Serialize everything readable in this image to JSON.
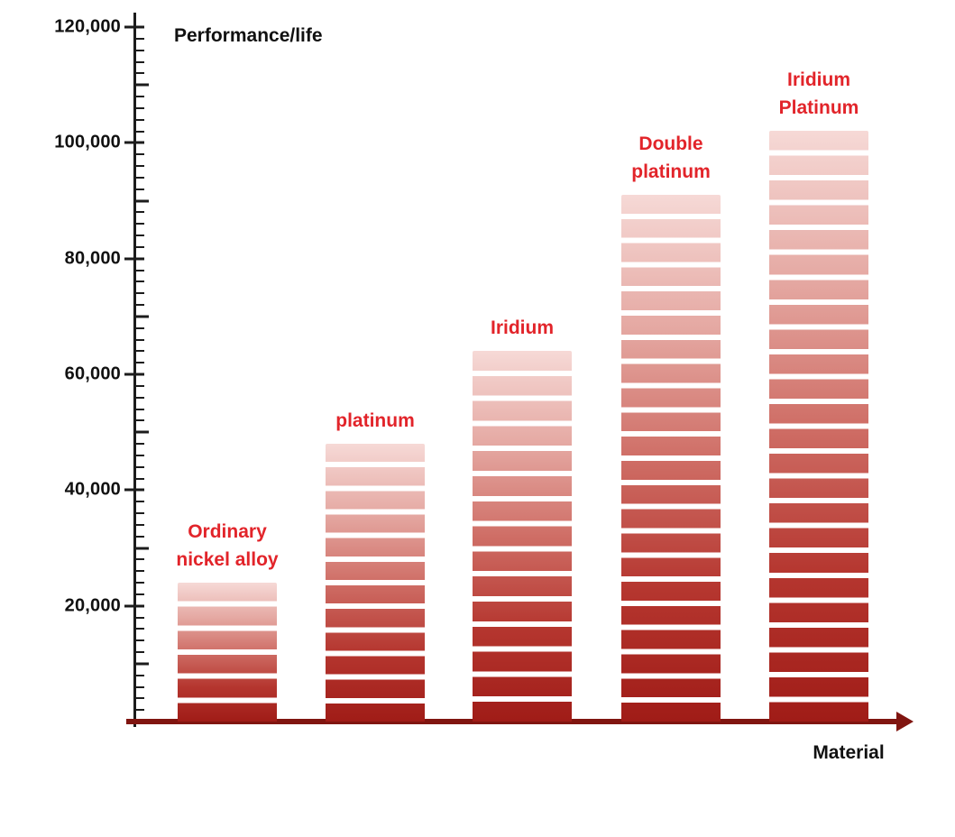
{
  "chart_data": {
    "type": "bar",
    "title": "",
    "ylabel": "Performance/life",
    "xlabel": "Material",
    "categories": [
      "Ordinary nickel alloy",
      "platinum",
      "Iridium",
      "Double platinum",
      "Iridium Platinum"
    ],
    "values": [
      24000,
      48000,
      64000,
      91000,
      102000
    ],
    "ylim": [
      0,
      120000
    ],
    "ytick_step": 20000,
    "ytick_minor_step": 2000,
    "ytick_labels": [
      "20,000",
      "40,000",
      "60,000",
      "80,000",
      "100,000",
      "120,000"
    ],
    "grid": false,
    "legend": null,
    "bar_segmented": true,
    "bar_gradient_bottom_to_top": [
      "#a01c17",
      "#b5362f",
      "#cf6e66",
      "#e5a9a3",
      "#f6d9d6"
    ],
    "bar_label_color": "#e2242a",
    "x_axis_color": "#801510",
    "y_axis_color": "#1c1c1c",
    "text_color": "#111111"
  },
  "bar_labels": [
    {
      "lines": [
        "Ordinary",
        "nickel alloy"
      ]
    },
    {
      "lines": [
        "platinum"
      ]
    },
    {
      "lines": [
        "Iridium"
      ]
    },
    {
      "lines": [
        "Double",
        "platinum"
      ]
    },
    {
      "lines": [
        "Iridium",
        "Platinum"
      ]
    }
  ]
}
